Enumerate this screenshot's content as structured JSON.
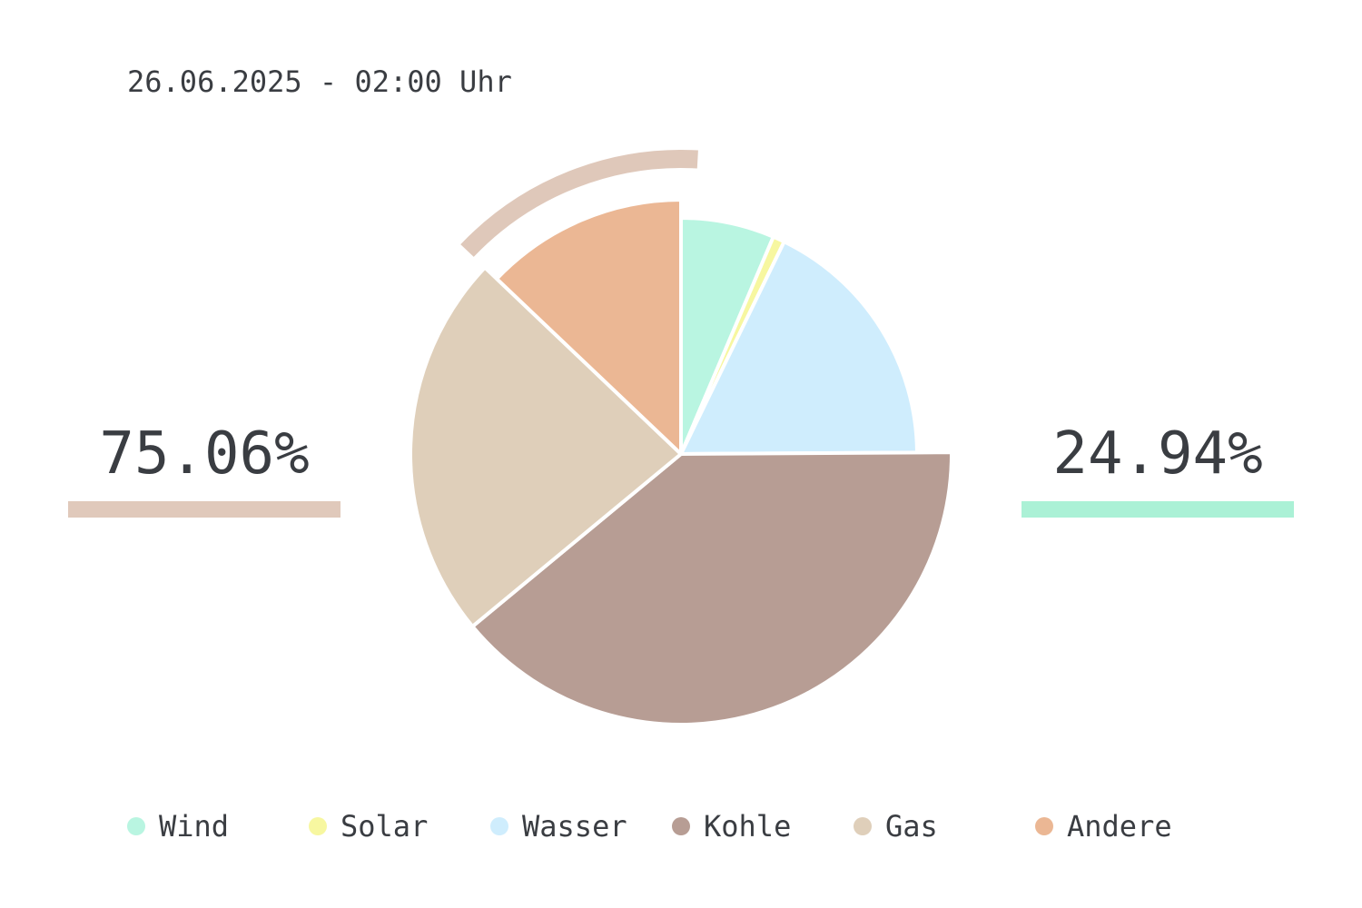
{
  "header": {
    "timestamp": "26.06.2025 - 02:00 Uhr"
  },
  "summary": {
    "fossil": {
      "percent": "75.06%",
      "color": "#e0c9bb"
    },
    "renewable": {
      "percent": "24.94%",
      "color": "#abf1d6"
    }
  },
  "colors": {
    "Wind": "#b9f5e1",
    "Solar": "#f7f7a0",
    "Wasser": "#cfedfd",
    "Kohle": "#b79d94",
    "Gas": "#dfcfba",
    "Andere": "#ebb794",
    "highlight_arc": "#dfc8ba"
  },
  "chart_data": {
    "type": "pie",
    "categories": [
      "Wind",
      "Solar",
      "Wasser",
      "Kohle",
      "Gas",
      "Andere"
    ],
    "values": [
      6.4,
      0.8,
      17.7,
      39.1,
      23.1,
      12.9
    ],
    "unit": "%",
    "highlighted_group": [
      "Kohle",
      "Gas",
      "Andere"
    ],
    "legend_position": "bottom"
  },
  "legend": [
    {
      "label": "Wind",
      "color": "#b9f5e1"
    },
    {
      "label": "Solar",
      "color": "#f7f7a0"
    },
    {
      "label": "Wasser",
      "color": "#cfedfd"
    },
    {
      "label": "Kohle",
      "color": "#b79d94"
    },
    {
      "label": "Gas",
      "color": "#dfcfba"
    },
    {
      "label": "Andere",
      "color": "#ebb794"
    }
  ]
}
